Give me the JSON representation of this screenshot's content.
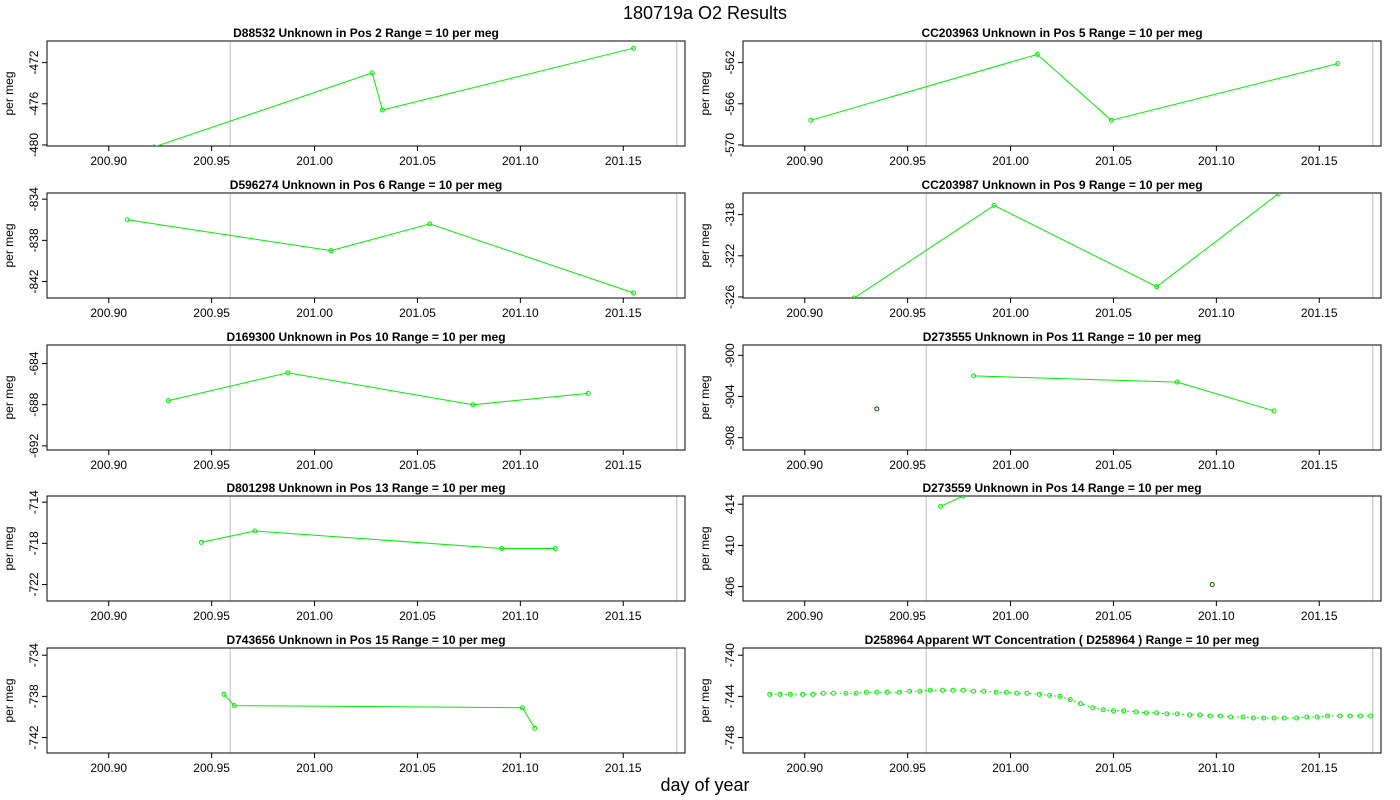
{
  "title": "180719a  O2 Results",
  "xlabel": "day of year",
  "colors": {
    "series": "#00ee00",
    "frame": "#000000",
    "vline": "#bbbbbb"
  },
  "chart_data": [
    {
      "type": "line",
      "id": "D88532",
      "label": "Unknown in Pos 2",
      "range": "Range = 10 per meg",
      "ylabel": "per meg",
      "xlim": [
        200.87,
        201.18
      ],
      "ylim": [
        -480.1,
        -469.9
      ],
      "yticks": [
        -472,
        -476,
        -480
      ],
      "xticks": [
        200.9,
        200.95,
        201.0,
        201.05,
        201.1,
        201.15
      ],
      "x": [
        200.922,
        201.028,
        201.033,
        201.155
      ],
      "y": [
        -480.2,
        -473.0,
        -476.6,
        -470.6
      ],
      "extra_points": [],
      "vlines": [
        200.959,
        201.176
      ]
    },
    {
      "type": "line",
      "id": "CC203963",
      "label": "Unknown in Pos 5",
      "range": "Range = 10 per meg",
      "ylabel": "per meg",
      "xlim": [
        200.87,
        201.18
      ],
      "ylim": [
        -570.1,
        -559.9
      ],
      "yticks": [
        -562,
        -566,
        -570
      ],
      "xticks": [
        200.9,
        200.95,
        201.0,
        201.05,
        201.1,
        201.15
      ],
      "x": [
        200.903,
        201.013,
        201.049,
        201.159
      ],
      "y": [
        -567.6,
        -561.2,
        -567.6,
        -562.1
      ],
      "extra_points": [],
      "vlines": [
        200.959,
        201.176
      ]
    },
    {
      "type": "line",
      "id": "D596274",
      "label": "Unknown in Pos 6",
      "range": "Range = 10 per meg",
      "ylabel": "per meg",
      "xlim": [
        200.87,
        201.18
      ],
      "ylim": [
        -843.6,
        -833.4
      ],
      "yticks": [
        -834,
        -838,
        -842
      ],
      "xticks": [
        200.9,
        200.95,
        201.0,
        201.05,
        201.1,
        201.15
      ],
      "x": [
        200.909,
        201.008,
        201.056,
        201.155
      ],
      "y": [
        -836.0,
        -839.0,
        -836.4,
        -843.1
      ],
      "extra_points": [],
      "vlines": [
        200.959,
        201.176
      ]
    },
    {
      "type": "line",
      "id": "CC203987",
      "label": "Unknown in Pos 9",
      "range": "Range = 10 per meg",
      "ylabel": "per meg",
      "xlim": [
        200.87,
        201.18
      ],
      "ylim": [
        -326.1,
        -315.9
      ],
      "yticks": [
        -318,
        -322,
        -326
      ],
      "xticks": [
        200.9,
        200.95,
        201.0,
        201.05,
        201.1,
        201.15
      ],
      "x": [
        200.924,
        200.992,
        201.071,
        201.13
      ],
      "y": [
        -326.1,
        -317.1,
        -325.0,
        -316.0
      ],
      "extra_points": [],
      "vlines": [
        200.959,
        201.176
      ]
    },
    {
      "type": "line",
      "id": "D169300",
      "label": "Unknown in Pos 10",
      "range": "Range = 10 per meg",
      "ylabel": "per meg",
      "xlim": [
        200.87,
        201.18
      ],
      "ylim": [
        -692.4,
        -682.2
      ],
      "yticks": [
        -684,
        -688,
        -692
      ],
      "xticks": [
        200.9,
        200.95,
        201.0,
        201.05,
        201.1,
        201.15
      ],
      "x": [
        200.929,
        200.987,
        201.077,
        201.133
      ],
      "y": [
        -687.6,
        -684.9,
        -688.0,
        -686.9
      ],
      "extra_points": [],
      "vlines": [
        200.959,
        201.176
      ]
    },
    {
      "type": "line",
      "id": "D273555",
      "label": "Unknown in Pos 11",
      "range": "Range = 10 per meg",
      "ylabel": "per meg",
      "xlim": [
        200.87,
        201.18
      ],
      "ylim": [
        -909.2,
        -899.0
      ],
      "yticks": [
        -900,
        -904,
        -908
      ],
      "xticks": [
        200.9,
        200.95,
        201.0,
        201.05,
        201.1,
        201.15
      ],
      "x": [
        200.982,
        201.081,
        201.128
      ],
      "y": [
        -902.0,
        -902.6,
        -905.4
      ],
      "extra_points": [
        {
          "x": 200.935,
          "y": -905.2,
          "color": "#005500"
        }
      ],
      "vlines": [
        200.959,
        201.176
      ]
    },
    {
      "type": "line",
      "id": "D801298",
      "label": "Unknown in Pos 13",
      "range": "Range = 10 per meg",
      "ylabel": "per meg",
      "xlim": [
        200.87,
        201.18
      ],
      "ylim": [
        -723.6,
        -713.4
      ],
      "yticks": [
        -714,
        -718,
        -722
      ],
      "xticks": [
        200.9,
        200.95,
        201.0,
        201.05,
        201.1,
        201.15
      ],
      "x": [
        200.945,
        200.971,
        201.091,
        201.117
      ],
      "y": [
        -717.9,
        -716.8,
        -718.5,
        -718.5
      ],
      "extra_points": [],
      "vlines": [
        200.959,
        201.176
      ]
    },
    {
      "type": "line",
      "id": "D273559",
      "label": "Unknown in Pos 14",
      "range": "Range = 10 per meg",
      "ylabel": "per meg",
      "xlim": [
        200.87,
        201.18
      ],
      "ylim": [
        404.6,
        414.8
      ],
      "yticks": [
        406,
        410,
        414
      ],
      "xticks": [
        200.9,
        200.95,
        201.0,
        201.05,
        201.1,
        201.15
      ],
      "x": [
        200.966,
        200.977
      ],
      "y": [
        413.8,
        414.8
      ],
      "extra_points": [
        {
          "x": 201.098,
          "y": 406.2,
          "color": "#005500"
        }
      ],
      "vlines": [
        200.959,
        201.176
      ]
    },
    {
      "type": "line",
      "id": "D743656",
      "label": "Unknown in Pos 15",
      "range": "Range = 10 per meg",
      "ylabel": "per meg",
      "xlim": [
        200.87,
        201.18
      ],
      "ylim": [
        -743.5,
        -733.3
      ],
      "yticks": [
        -734,
        -738,
        -742
      ],
      "xticks": [
        200.9,
        200.95,
        201.0,
        201.05,
        201.1,
        201.15
      ],
      "x": [
        200.956,
        200.961,
        201.101,
        201.107
      ],
      "y": [
        -737.8,
        -738.9,
        -739.1,
        -741.1
      ],
      "extra_points": [],
      "vlines": [
        200.959,
        201.176
      ]
    },
    {
      "type": "line",
      "id": "D258964",
      "label": "Apparent WT Concentration ( D258964 )",
      "range": "Range = 10 per meg",
      "ylabel": "per meg",
      "xlim": [
        200.87,
        201.18
      ],
      "ylim": [
        -749.5,
        -739.3
      ],
      "yticks": [
        -740,
        -744,
        -748
      ],
      "xticks": [
        200.9,
        200.95,
        201.0,
        201.05,
        201.1,
        201.15
      ],
      "x": [
        200.883,
        200.888,
        200.893,
        200.899,
        200.904,
        200.909,
        200.914,
        200.92,
        200.925,
        200.93,
        200.935,
        200.94,
        200.946,
        200.951,
        200.956,
        200.961,
        200.967,
        200.972,
        200.977,
        200.982,
        200.987,
        200.993,
        200.998,
        201.003,
        201.008,
        201.014,
        201.019,
        201.024,
        201.029,
        201.034,
        201.04,
        201.045,
        201.05,
        201.055,
        201.061,
        201.066,
        201.071,
        201.076,
        201.081,
        201.087,
        201.092,
        201.097,
        201.102,
        201.107,
        201.113,
        201.118,
        201.123,
        201.128,
        201.133,
        201.139,
        201.144,
        201.149,
        201.154,
        201.16,
        201.165,
        201.17,
        201.175
      ],
      "y": [
        -743.8,
        -743.8,
        -743.8,
        -743.8,
        -743.8,
        -743.7,
        -743.7,
        -743.7,
        -743.7,
        -743.6,
        -743.6,
        -743.6,
        -743.6,
        -743.5,
        -743.5,
        -743.4,
        -743.4,
        -743.4,
        -743.4,
        -743.5,
        -743.5,
        -743.6,
        -743.6,
        -743.7,
        -743.7,
        -743.8,
        -743.9,
        -744.0,
        -744.3,
        -744.7,
        -745.1,
        -745.3,
        -745.4,
        -745.4,
        -745.5,
        -745.6,
        -745.6,
        -745.7,
        -745.7,
        -745.8,
        -745.8,
        -745.9,
        -745.9,
        -746.0,
        -746.0,
        -746.1,
        -746.1,
        -746.1,
        -746.1,
        -746.1,
        -746.0,
        -746.0,
        -745.9,
        -745.9,
        -745.9,
        -745.9,
        -745.9
      ],
      "extra_points": [],
      "vlines": [
        200.959,
        201.176
      ]
    }
  ]
}
